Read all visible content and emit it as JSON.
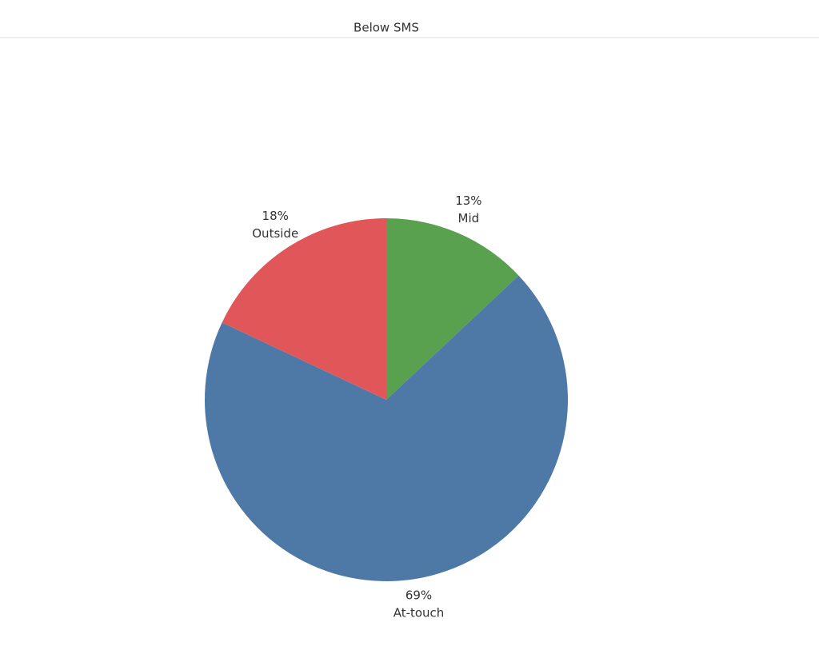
{
  "chart_data": {
    "type": "pie",
    "title": "Below SMS",
    "categories": [
      "Mid",
      "At-touch",
      "Outside"
    ],
    "values": [
      13,
      69,
      18
    ],
    "value_labels": [
      "13%",
      "69%",
      "18%"
    ],
    "colors": [
      "#59a14f",
      "#4e79a7",
      "#e15759"
    ]
  }
}
